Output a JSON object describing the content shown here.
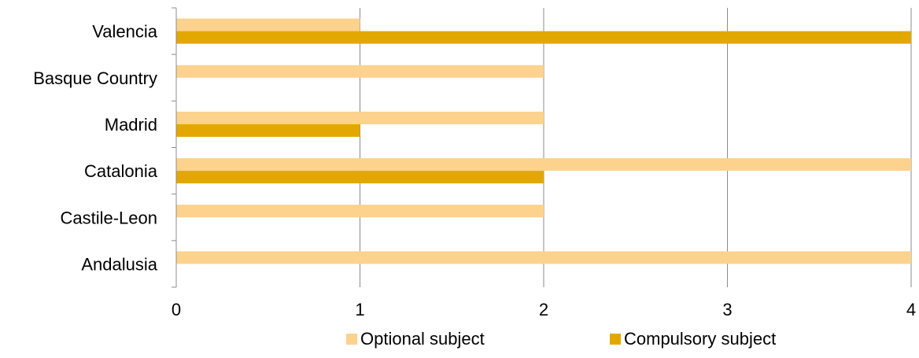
{
  "chart_data": {
    "type": "bar",
    "orientation": "horizontal",
    "categories": [
      "Valencia",
      "Basque Country",
      "Madrid",
      "Catalonia",
      "Castile-Leon",
      "Andalusia"
    ],
    "series": [
      {
        "name": "Optional subject",
        "values": [
          1,
          2,
          2,
          4,
          2,
          4
        ],
        "color": "#FCD28C"
      },
      {
        "name": "Compulsory subject",
        "values": [
          4,
          0,
          1,
          2,
          0,
          0
        ],
        "color": "#E3A800"
      }
    ],
    "xlim": [
      0,
      4
    ],
    "xticks": [
      "0",
      "1",
      "2",
      "3",
      "4"
    ],
    "grid": true,
    "legend_position": "bottom"
  },
  "colors": {
    "grid": "#8c8c8c",
    "axis": "#8c8c8c"
  }
}
